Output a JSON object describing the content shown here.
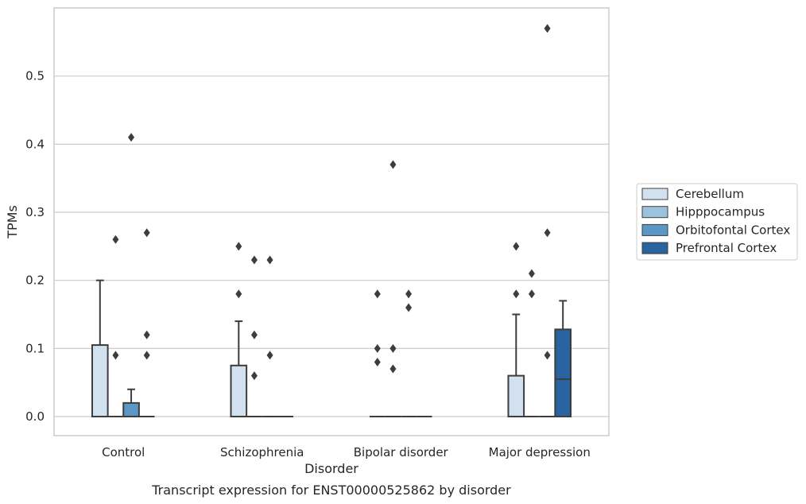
{
  "chart_data": {
    "type": "box",
    "xlabel": "Disorder",
    "ylabel": "TPMs",
    "caption": "Transcript expression for ENST00000525862 by disorder",
    "ylim": [
      -0.028,
      0.6
    ],
    "yticks": [
      "0.0",
      "0.1",
      "0.2",
      "0.3",
      "0.4",
      "0.5"
    ],
    "grid": "horizontal",
    "legend_position": "right",
    "categories": [
      "Control",
      "Schizophrenia",
      "Bipolar disorder",
      "Major depression"
    ],
    "series": [
      {
        "name": "Cerebellum",
        "color": "#d2e1f0",
        "boxes": [
          {
            "q1": 0,
            "median": 0,
            "q3": 0.105,
            "whisker_low": 0,
            "whisker_high": 0.2,
            "outliers": []
          },
          {
            "q1": 0,
            "median": 0,
            "q3": 0.075,
            "whisker_low": 0,
            "whisker_high": 0.14,
            "outliers": [
              0.25,
              0.18
            ]
          },
          {
            "q1": 0,
            "median": 0,
            "q3": 0,
            "whisker_low": 0,
            "whisker_high": 0,
            "outliers": [
              0.18,
              0.1,
              0.08
            ]
          },
          {
            "q1": 0,
            "median": 0,
            "q3": 0.06,
            "whisker_low": 0,
            "whisker_high": 0.15,
            "outliers": [
              0.25,
              0.18
            ]
          }
        ]
      },
      {
        "name": "Hipppocampus",
        "color": "#9dc3dc",
        "boxes": [
          {
            "q1": 0,
            "median": 0,
            "q3": 0,
            "whisker_low": 0,
            "whisker_high": 0,
            "outliers": [
              0.26,
              0.09
            ]
          },
          {
            "q1": 0,
            "median": 0,
            "q3": 0,
            "whisker_low": 0,
            "whisker_high": 0,
            "outliers": [
              0.23,
              0.12,
              0.06
            ]
          },
          {
            "q1": 0,
            "median": 0,
            "q3": 0,
            "whisker_low": 0,
            "whisker_high": 0,
            "outliers": [
              0.37,
              0.1,
              0.07
            ]
          },
          {
            "q1": 0,
            "median": 0,
            "q3": 0,
            "whisker_low": 0,
            "whisker_high": 0,
            "outliers": [
              0.21,
              0.18
            ]
          }
        ]
      },
      {
        "name": "Orbitofontal Cortex",
        "color": "#5a97c4",
        "boxes": [
          {
            "q1": 0,
            "median": 0,
            "q3": 0.02,
            "whisker_low": 0,
            "whisker_high": 0.04,
            "outliers": [
              0.41
            ]
          },
          {
            "q1": 0,
            "median": 0,
            "q3": 0,
            "whisker_low": 0,
            "whisker_high": 0,
            "outliers": [
              0.23,
              0.09
            ]
          },
          {
            "q1": 0,
            "median": 0,
            "q3": 0,
            "whisker_low": 0,
            "whisker_high": 0,
            "outliers": [
              0.18,
              0.16
            ]
          },
          {
            "q1": 0,
            "median": 0,
            "q3": 0,
            "whisker_low": 0,
            "whisker_high": 0,
            "outliers": [
              0.57,
              0.27,
              0.09
            ]
          }
        ]
      },
      {
        "name": "Prefrontal Cortex",
        "color": "#2a64a0",
        "boxes": [
          {
            "q1": 0,
            "median": 0,
            "q3": 0,
            "whisker_low": 0,
            "whisker_high": 0,
            "outliers": [
              0.27,
              0.12,
              0.09
            ]
          },
          {
            "q1": 0,
            "median": 0,
            "q3": 0,
            "whisker_low": 0,
            "whisker_high": 0,
            "outliers": []
          },
          {
            "q1": 0,
            "median": 0,
            "q3": 0,
            "whisker_low": 0,
            "whisker_high": 0,
            "outliers": []
          },
          {
            "q1": 0,
            "median": 0.055,
            "q3": 0.128,
            "whisker_low": 0,
            "whisker_high": 0.17,
            "outliers": []
          }
        ]
      }
    ]
  }
}
